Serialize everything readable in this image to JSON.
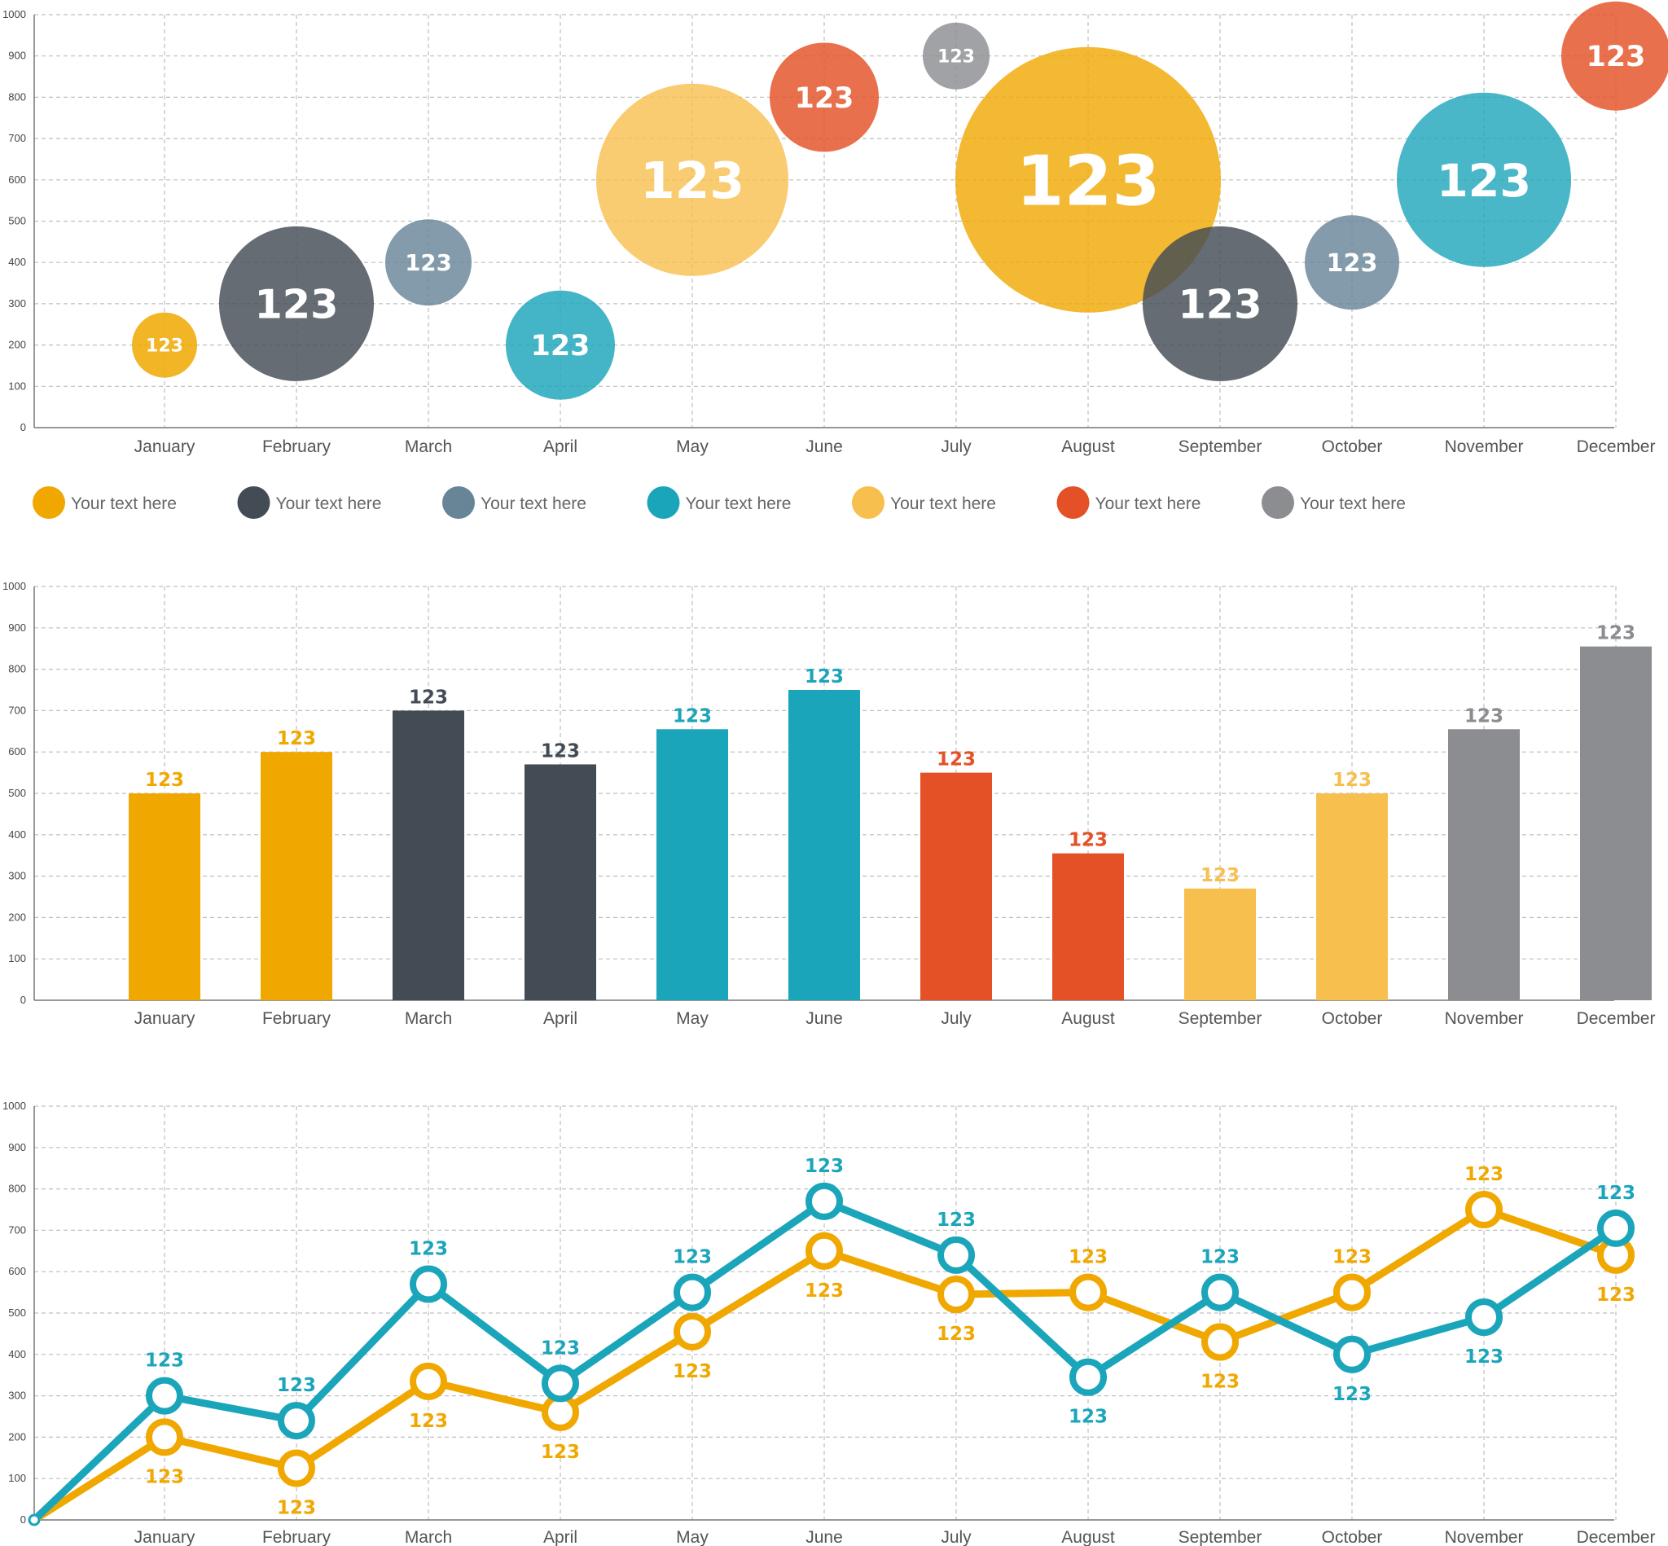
{
  "colors": {
    "yellow": "#f0a800",
    "dark": "#434c55",
    "slate": "#688597",
    "teal": "#1ba5ba",
    "lightyellow": "#f7bf4e",
    "red": "#e45126",
    "gray": "#8c8d91"
  },
  "legend": [
    {
      "label": "Your text here",
      "color": "#f0a800"
    },
    {
      "label": "Your text here",
      "color": "#434c55"
    },
    {
      "label": "Your text here",
      "color": "#688597"
    },
    {
      "label": "Your text here",
      "color": "#1ba5ba"
    },
    {
      "label": "Your text here",
      "color": "#f7bf4e"
    },
    {
      "label": "Your text here",
      "color": "#e45126"
    },
    {
      "label": "Your text here",
      "color": "#8c8d91"
    }
  ],
  "chart_data": [
    {
      "type": "scatter",
      "subtype": "bubble",
      "categories": [
        "January",
        "February",
        "March",
        "April",
        "May",
        "June",
        "July",
        "August",
        "September",
        "October",
        "November",
        "December"
      ],
      "ylim": [
        0,
        1000
      ],
      "yticks": [
        0,
        100,
        200,
        300,
        400,
        500,
        600,
        700,
        800,
        900,
        1000
      ],
      "grid": true,
      "points": [
        {
          "x": "January",
          "y": 200,
          "size": 40,
          "label": "123",
          "color": "#f0a800",
          "opacity": 0.85
        },
        {
          "x": "February",
          "y": 300,
          "size": 95,
          "label": "123",
          "color": "#434c55",
          "opacity": 0.82
        },
        {
          "x": "March",
          "y": 400,
          "size": 53,
          "label": "123",
          "color": "#688597",
          "opacity": 0.82
        },
        {
          "x": "April",
          "y": 200,
          "size": 67,
          "label": "123",
          "color": "#1ba5ba",
          "opacity": 0.82
        },
        {
          "x": "May",
          "y": 600,
          "size": 118,
          "label": "123",
          "color": "#f7bf4e",
          "opacity": 0.8
        },
        {
          "x": "June",
          "y": 800,
          "size": 67,
          "label": "123",
          "color": "#e45126",
          "opacity": 0.82
        },
        {
          "x": "July",
          "y": 900,
          "size": 41,
          "label": "123",
          "color": "#8c8d91",
          "opacity": 0.82
        },
        {
          "x": "August",
          "y": 600,
          "size": 163,
          "label": "123",
          "color": "#f0a800",
          "opacity": 0.8
        },
        {
          "x": "September",
          "y": 300,
          "size": 95,
          "label": "123",
          "color": "#434c55",
          "opacity": 0.82
        },
        {
          "x": "October",
          "y": 400,
          "size": 58,
          "label": "123",
          "color": "#688597",
          "opacity": 0.82
        },
        {
          "x": "November",
          "y": 600,
          "size": 107,
          "label": "123",
          "color": "#1ba5ba",
          "opacity": 0.8
        },
        {
          "x": "December",
          "y": 900,
          "size": 67,
          "label": "123",
          "color": "#e45126",
          "opacity": 0.82
        }
      ]
    },
    {
      "type": "bar",
      "categories": [
        "January",
        "February",
        "March",
        "April",
        "May",
        "June",
        "July",
        "August",
        "September",
        "October",
        "November",
        "December"
      ],
      "values": [
        500,
        600,
        700,
        570,
        655,
        750,
        550,
        355,
        270,
        500,
        655,
        855
      ],
      "labels": [
        "123",
        "123",
        "123",
        "123",
        "123",
        "123",
        "123",
        "123",
        "123",
        "123",
        "123",
        "123"
      ],
      "colors": [
        "#f0a800",
        "#f0a800",
        "#434c55",
        "#434c55",
        "#1ba5ba",
        "#1ba5ba",
        "#e45126",
        "#e45126",
        "#f7bf4e",
        "#f7bf4e",
        "#8c8d91",
        "#8c8d91"
      ],
      "ylim": [
        0,
        1000
      ],
      "yticks": [
        0,
        100,
        200,
        300,
        400,
        500,
        600,
        700,
        800,
        900,
        1000
      ],
      "grid": true
    },
    {
      "type": "line",
      "origin": {
        "x": 0,
        "y": 0
      },
      "categories": [
        "January",
        "February",
        "March",
        "April",
        "May",
        "June",
        "July",
        "August",
        "September",
        "October",
        "November",
        "December"
      ],
      "ylim": [
        0,
        1000
      ],
      "yticks": [
        0,
        100,
        200,
        300,
        400,
        500,
        600,
        700,
        800,
        900,
        1000
      ],
      "grid": true,
      "series": [
        {
          "color": "#1ba5ba",
          "values": [
            300,
            240,
            570,
            330,
            550,
            770,
            640,
            345,
            550,
            400,
            490,
            705
          ],
          "labels": [
            "123",
            "123",
            "123",
            "123",
            "123",
            "123",
            "123",
            "123",
            "123",
            "123",
            "123",
            "123"
          ],
          "label_position": [
            "above",
            "above",
            "above",
            "above",
            "above",
            "above",
            "above",
            "below",
            "above",
            "below",
            "below",
            "above"
          ]
        },
        {
          "color": "#f0a800",
          "values": [
            200,
            125,
            335,
            260,
            455,
            650,
            545,
            550,
            430,
            550,
            750,
            640
          ],
          "labels": [
            "123",
            "123",
            "123",
            "123",
            "123",
            "123",
            "123",
            "123",
            "123",
            "123",
            "123",
            "123"
          ],
          "label_position": [
            "below",
            "below",
            "below",
            "below",
            "below",
            "below",
            "below",
            "above",
            "below",
            "above",
            "above",
            "below"
          ]
        }
      ]
    }
  ]
}
